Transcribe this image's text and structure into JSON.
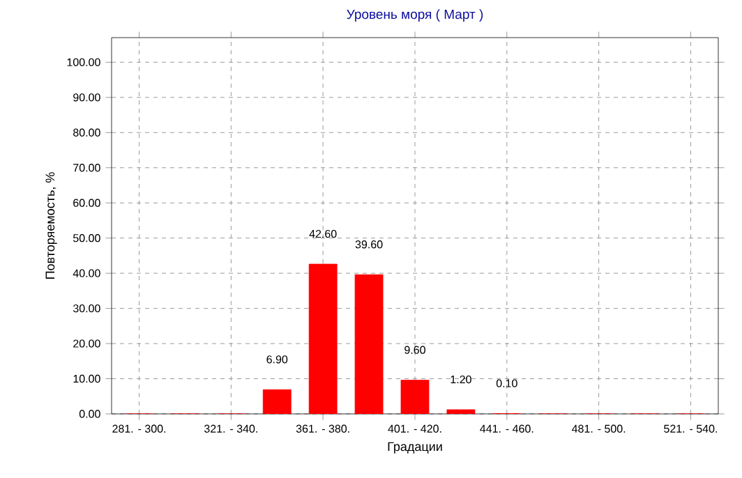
{
  "chart_data": {
    "type": "bar",
    "title": "Уровень моря    ( Март )",
    "xlabel": "Градации",
    "ylabel": "Повторяемость, %",
    "categories": [
      "281. - 300.",
      null,
      "321. - 340.",
      null,
      "361. - 380.",
      null,
      "401. - 420.",
      null,
      "441. - 460.",
      null,
      "481. - 500.",
      null,
      "521. - 540."
    ],
    "values": [
      0,
      0,
      0,
      6.9,
      42.6,
      39.6,
      9.6,
      1.2,
      0.1,
      0,
      0,
      0,
      0
    ],
    "value_labels": [
      null,
      null,
      null,
      "6.90",
      "42.60",
      "39.60",
      "9.60",
      "1.20",
      "0.10",
      null,
      null,
      null,
      null
    ],
    "color": "#ff0000",
    "ylim": [
      0,
      107
    ],
    "yticks": [
      {
        "value": 0,
        "label": "0.00"
      },
      {
        "value": 10,
        "label": "10.00"
      },
      {
        "value": 20,
        "label": "20.00"
      },
      {
        "value": 30,
        "label": "30.00"
      },
      {
        "value": 40,
        "label": "40.00"
      },
      {
        "value": 50,
        "label": "50.00"
      },
      {
        "value": 60,
        "label": "60.00"
      },
      {
        "value": 70,
        "label": "70.00"
      },
      {
        "value": 80,
        "label": "80.00"
      },
      {
        "value": 90,
        "label": "90.00"
      },
      {
        "value": 100,
        "label": "100.00"
      }
    ],
    "grid": true
  }
}
